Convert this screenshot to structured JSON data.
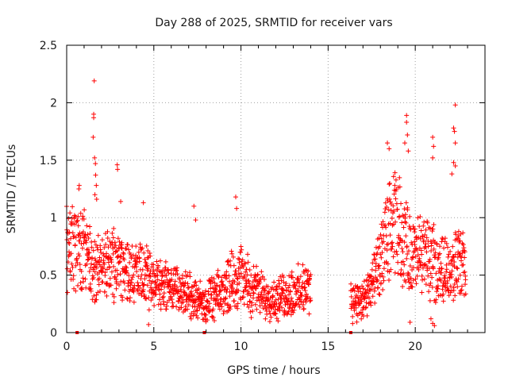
{
  "chart_data": {
    "type": "scatter",
    "title": "Day 288 of 2025, SRMTID for receiver vars",
    "xlabel": "GPS time / hours",
    "ylabel": "SRMTID / TECUs",
    "xlim": [
      0,
      24
    ],
    "ylim": [
      0,
      2.5
    ],
    "xticks": [
      0,
      5,
      10,
      15,
      20
    ],
    "yticks": [
      0,
      0.5,
      1,
      1.5,
      2,
      2.5
    ],
    "x_tick_labels": [
      "0",
      "5",
      "10",
      "15",
      "20"
    ],
    "y_tick_labels": [
      "0",
      "0.5",
      "1",
      "1.5",
      "2",
      "2.5"
    ],
    "grid": true,
    "marker": "+",
    "series": [
      {
        "name": "SRMTID",
        "color": "#ff0000",
        "segments": [
          {
            "start": 0.0,
            "end": 14.0,
            "step": 0.0125,
            "profile": [
              [
                0.0,
                0.75
              ],
              [
                1.0,
                0.7
              ],
              [
                1.5,
                0.55
              ],
              [
                2.5,
                0.6
              ],
              [
                3.5,
                0.55
              ],
              [
                5.0,
                0.45
              ],
              [
                6.0,
                0.4
              ],
              [
                7.0,
                0.32
              ],
              [
                8.0,
                0.25
              ],
              [
                8.5,
                0.3
              ],
              [
                9.0,
                0.35
              ],
              [
                9.5,
                0.48
              ],
              [
                10.0,
                0.5
              ],
              [
                10.5,
                0.4
              ],
              [
                11.0,
                0.35
              ],
              [
                12.0,
                0.28
              ],
              [
                13.0,
                0.35
              ],
              [
                14.0,
                0.38
              ]
            ]
          },
          {
            "start": 16.3,
            "end": 22.9,
            "step": 0.0125,
            "profile": [
              [
                16.3,
                0.3
              ],
              [
                17.0,
                0.25
              ],
              [
                17.5,
                0.4
              ],
              [
                18.0,
                0.6
              ],
              [
                18.5,
                0.9
              ],
              [
                19.0,
                0.95
              ],
              [
                19.5,
                0.75
              ],
              [
                20.0,
                0.65
              ],
              [
                20.5,
                0.7
              ],
              [
                21.0,
                0.6
              ],
              [
                21.5,
                0.55
              ],
              [
                22.0,
                0.55
              ],
              [
                22.5,
                0.6
              ],
              [
                22.9,
                0.55
              ]
            ]
          }
        ],
        "spikes": [
          {
            "x": 1.58,
            "y": 2.19
          },
          {
            "x": 1.55,
            "y": 1.9
          },
          {
            "x": 1.55,
            "y": 1.87
          },
          {
            "x": 1.52,
            "y": 1.7
          },
          {
            "x": 1.6,
            "y": 1.52
          },
          {
            "x": 1.65,
            "y": 1.47
          },
          {
            "x": 1.66,
            "y": 1.37
          },
          {
            "x": 1.7,
            "y": 1.28
          },
          {
            "x": 1.62,
            "y": 1.2
          },
          {
            "x": 1.72,
            "y": 1.16
          },
          {
            "x": 0.72,
            "y": 1.28
          },
          {
            "x": 0.7,
            "y": 1.25
          },
          {
            "x": 2.9,
            "y": 1.46
          },
          {
            "x": 2.92,
            "y": 1.42
          },
          {
            "x": 3.1,
            "y": 1.14
          },
          {
            "x": 4.4,
            "y": 1.13
          },
          {
            "x": 7.3,
            "y": 1.1
          },
          {
            "x": 7.4,
            "y": 0.98
          },
          {
            "x": 9.7,
            "y": 1.18
          },
          {
            "x": 9.75,
            "y": 1.08
          },
          {
            "x": 18.4,
            "y": 1.65
          },
          {
            "x": 18.5,
            "y": 1.6
          },
          {
            "x": 19.5,
            "y": 1.89
          },
          {
            "x": 19.5,
            "y": 1.83
          },
          {
            "x": 19.55,
            "y": 1.72
          },
          {
            "x": 19.4,
            "y": 1.65
          },
          {
            "x": 19.6,
            "y": 1.58
          },
          {
            "x": 21.0,
            "y": 1.7
          },
          {
            "x": 21.05,
            "y": 1.62
          },
          {
            "x": 21.0,
            "y": 1.52
          },
          {
            "x": 22.3,
            "y": 1.98
          },
          {
            "x": 22.2,
            "y": 1.78
          },
          {
            "x": 22.25,
            "y": 1.75
          },
          {
            "x": 22.3,
            "y": 1.65
          },
          {
            "x": 22.2,
            "y": 1.48
          },
          {
            "x": 22.3,
            "y": 1.45
          },
          {
            "x": 22.1,
            "y": 1.38
          },
          {
            "x": 21.0,
            "y": 0.08
          },
          {
            "x": 21.1,
            "y": 0.06
          },
          {
            "x": 20.9,
            "y": 0.12
          },
          {
            "x": 19.7,
            "y": 0.09
          },
          {
            "x": 4.7,
            "y": 0.07
          },
          {
            "x": 7.9,
            "y": 0.0
          },
          {
            "x": 0.6,
            "y": 0.0
          },
          {
            "x": 16.3,
            "y": 0.0
          }
        ]
      }
    ]
  }
}
